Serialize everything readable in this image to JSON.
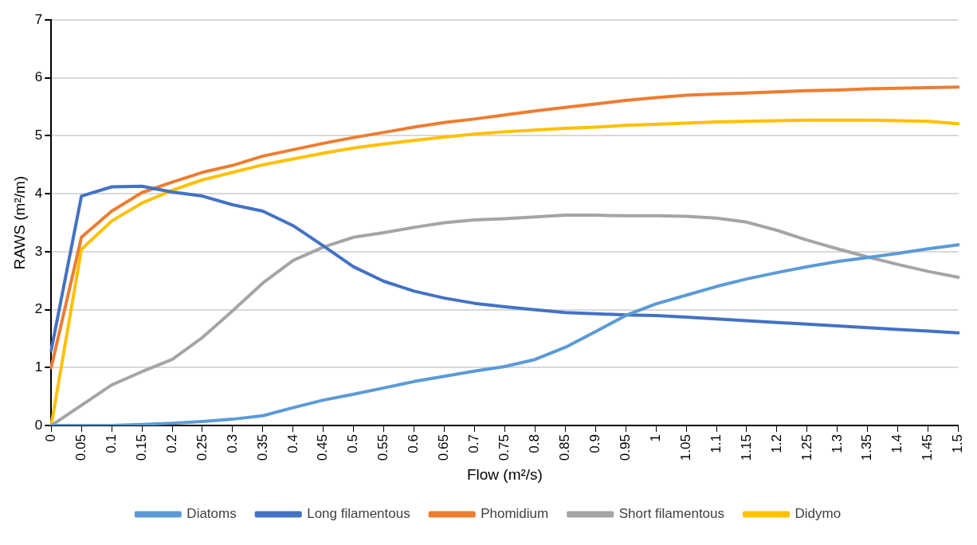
{
  "chart_data": {
    "type": "line",
    "xlabel": "Flow (m²/s)",
    "ylabel": "RAWS (m²/m)",
    "categories": [
      "0",
      "0.05",
      "0.1",
      "0.15",
      "0.2",
      "0.25",
      "0.3",
      "0.35",
      "0.4",
      "0.45",
      "0.5",
      "0.55",
      "0.6",
      "0.65",
      "0.7",
      "0.75",
      "0.8",
      "0.85",
      "0.9",
      "0.95",
      "1",
      "1.05",
      "1.1",
      "1.15",
      "1.2",
      "1.25",
      "1.3",
      "1.35",
      "1.4",
      "1.45",
      "1.5"
    ],
    "series": [
      {
        "name": "Diatoms",
        "color": "#5b9bd5",
        "values": [
          0,
          0,
          0,
          0.02,
          0.04,
          0.07,
          0.11,
          0.17,
          0.31,
          0.44,
          0.54,
          0.65,
          0.76,
          0.85,
          0.94,
          1.02,
          1.14,
          1.35,
          1.62,
          1.9,
          2.1,
          2.25,
          2.4,
          2.53,
          2.64,
          2.74,
          2.83,
          2.9,
          2.97,
          3.05,
          3.12
        ]
      },
      {
        "name": "Long filamentous",
        "color": "#4472c4",
        "values": [
          1.3,
          3.96,
          4.12,
          4.13,
          4.03,
          3.96,
          3.81,
          3.7,
          3.45,
          3.1,
          2.74,
          2.49,
          2.32,
          2.2,
          2.11,
          2.05,
          2.0,
          1.95,
          1.93,
          1.91,
          1.9,
          1.87,
          1.84,
          1.81,
          1.78,
          1.75,
          1.72,
          1.69,
          1.66,
          1.63,
          1.6
        ]
      },
      {
        "name": "Phomidium",
        "color": "#ed7d31",
        "values": [
          1.0,
          3.25,
          3.7,
          4.02,
          4.2,
          4.37,
          4.49,
          4.65,
          4.76,
          4.87,
          4.97,
          5.06,
          5.15,
          5.23,
          5.29,
          5.36,
          5.43,
          5.49,
          5.55,
          5.61,
          5.66,
          5.7,
          5.72,
          5.74,
          5.76,
          5.78,
          5.79,
          5.81,
          5.82,
          5.83,
          5.84
        ]
      },
      {
        "name": "Short filamentous",
        "color": "#a5a5a5",
        "values": [
          0,
          0.35,
          0.7,
          0.93,
          1.14,
          1.52,
          1.98,
          2.46,
          2.85,
          3.08,
          3.25,
          3.33,
          3.42,
          3.5,
          3.55,
          3.57,
          3.6,
          3.63,
          3.63,
          3.62,
          3.62,
          3.61,
          3.58,
          3.51,
          3.37,
          3.2,
          3.05,
          2.91,
          2.78,
          2.66,
          2.56
        ]
      },
      {
        "name": "Didymo",
        "color": "#ffc000",
        "values": [
          0,
          3.04,
          3.53,
          3.84,
          4.06,
          4.24,
          4.37,
          4.5,
          4.6,
          4.7,
          4.79,
          4.86,
          4.92,
          4.98,
          5.03,
          5.07,
          5.1,
          5.13,
          5.15,
          5.18,
          5.2,
          5.22,
          5.24,
          5.25,
          5.26,
          5.27,
          5.27,
          5.27,
          5.26,
          5.25,
          5.21
        ]
      }
    ],
    "ylim": [
      0,
      7
    ],
    "yticks": [
      0,
      1,
      2,
      3,
      4,
      5,
      6,
      7
    ],
    "grid": "y",
    "legend": "bottom",
    "marker": "none",
    "line_style": "solid"
  }
}
